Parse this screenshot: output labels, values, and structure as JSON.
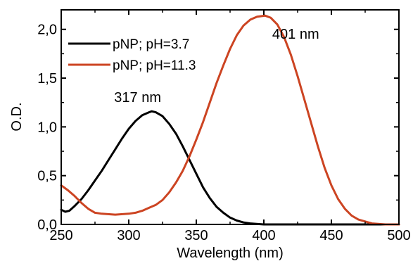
{
  "chart_data": {
    "type": "line",
    "xlabel": "Wavelength (nm)",
    "ylabel": "O.D.",
    "xlim": [
      250,
      500
    ],
    "ylim": [
      0,
      2.2
    ],
    "x_ticks": [
      250,
      300,
      350,
      400,
      450,
      500
    ],
    "x_tick_labels": [
      "250",
      "300",
      "350",
      "400",
      "450",
      "500"
    ],
    "y_ticks": [
      0,
      0.5,
      1.0,
      1.5,
      2.0
    ],
    "y_tick_labels": [
      "0,0",
      "0,5",
      "1,0",
      "1,5",
      "2,0"
    ],
    "grid": false,
    "legend_position": "top-left",
    "series": [
      {
        "name": "pNP; pH=3.7",
        "color": "#000000",
        "points": [
          [
            250,
            0.15
          ],
          [
            253,
            0.13
          ],
          [
            256,
            0.14
          ],
          [
            260,
            0.19
          ],
          [
            265,
            0.26
          ],
          [
            270,
            0.35
          ],
          [
            275,
            0.45
          ],
          [
            280,
            0.55
          ],
          [
            285,
            0.66
          ],
          [
            290,
            0.77
          ],
          [
            295,
            0.88
          ],
          [
            300,
            0.98
          ],
          [
            305,
            1.06
          ],
          [
            310,
            1.12
          ],
          [
            315,
            1.15
          ],
          [
            317,
            1.16
          ],
          [
            320,
            1.15
          ],
          [
            325,
            1.11
          ],
          [
            330,
            1.03
          ],
          [
            335,
            0.93
          ],
          [
            340,
            0.8
          ],
          [
            345,
            0.66
          ],
          [
            350,
            0.52
          ],
          [
            355,
            0.38
          ],
          [
            360,
            0.27
          ],
          [
            365,
            0.18
          ],
          [
            370,
            0.12
          ],
          [
            375,
            0.07
          ],
          [
            380,
            0.04
          ],
          [
            385,
            0.02
          ],
          [
            390,
            0.01
          ],
          [
            400,
            0.0
          ],
          [
            420,
            0.0
          ],
          [
            450,
            0.0
          ],
          [
            480,
            0.0
          ],
          [
            500,
            0.0
          ]
        ]
      },
      {
        "name": "pNP; pH=11.3",
        "color": "#cc4422",
        "points": [
          [
            250,
            0.4
          ],
          [
            255,
            0.35
          ],
          [
            260,
            0.29
          ],
          [
            265,
            0.22
          ],
          [
            270,
            0.16
          ],
          [
            275,
            0.12
          ],
          [
            280,
            0.11
          ],
          [
            290,
            0.1
          ],
          [
            300,
            0.11
          ],
          [
            305,
            0.12
          ],
          [
            310,
            0.14
          ],
          [
            315,
            0.17
          ],
          [
            320,
            0.2
          ],
          [
            325,
            0.25
          ],
          [
            330,
            0.33
          ],
          [
            335,
            0.43
          ],
          [
            340,
            0.55
          ],
          [
            345,
            0.7
          ],
          [
            350,
            0.87
          ],
          [
            355,
            1.05
          ],
          [
            360,
            1.25
          ],
          [
            365,
            1.45
          ],
          [
            370,
            1.63
          ],
          [
            375,
            1.8
          ],
          [
            380,
            1.94
          ],
          [
            385,
            2.04
          ],
          [
            390,
            2.1
          ],
          [
            395,
            2.13
          ],
          [
            401,
            2.14
          ],
          [
            405,
            2.12
          ],
          [
            410,
            2.05
          ],
          [
            415,
            1.92
          ],
          [
            420,
            1.74
          ],
          [
            425,
            1.52
          ],
          [
            430,
            1.28
          ],
          [
            435,
            1.04
          ],
          [
            440,
            0.8
          ],
          [
            445,
            0.58
          ],
          [
            450,
            0.4
          ],
          [
            455,
            0.26
          ],
          [
            460,
            0.16
          ],
          [
            465,
            0.09
          ],
          [
            470,
            0.05
          ],
          [
            475,
            0.03
          ],
          [
            480,
            0.01
          ],
          [
            490,
            0.0
          ],
          [
            500,
            0.0
          ]
        ]
      }
    ],
    "annotations": [
      {
        "text": "317 nm",
        "x": 317,
        "y": 1.16
      },
      {
        "text": "401 nm",
        "x": 401,
        "y": 2.14
      }
    ]
  }
}
